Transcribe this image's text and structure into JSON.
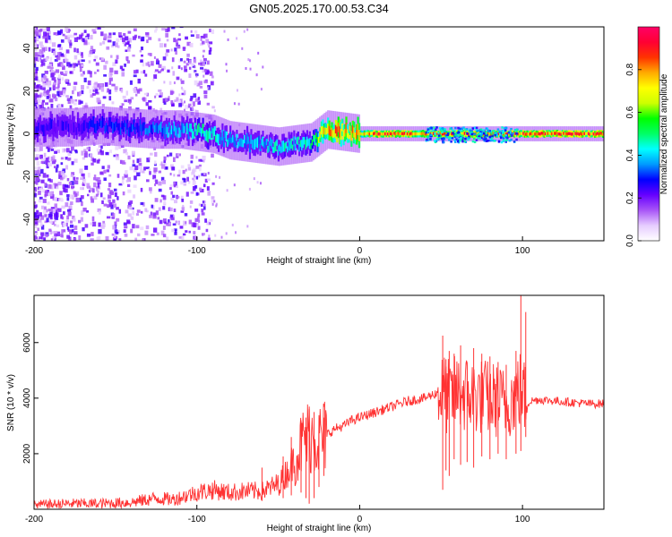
{
  "title": "GN05.2025.170.00.53.C34",
  "chart_data": [
    {
      "type": "heatmap",
      "title": "GN05.2025.170.00.53.C34",
      "xlabel": "Height of straight line (km)",
      "ylabel": "Frequency (Hz)",
      "xlim": [
        -200,
        150
      ],
      "ylim": [
        -50,
        50
      ],
      "x_ticks": [
        -200,
        -100,
        0,
        100
      ],
      "y_ticks": [
        -40,
        -20,
        0,
        20,
        40
      ],
      "x_tick_labels": [
        "-200",
        "-100",
        "0",
        "100"
      ],
      "y_tick_labels": [
        "-40",
        "-20",
        "0",
        "20",
        "40"
      ],
      "ridge": {
        "description_points_x": [
          -175,
          -160,
          -145,
          -125,
          -110,
          -100,
          -90,
          -80,
          -70,
          -60,
          -50,
          -40,
          -30,
          -20,
          -10,
          0,
          10,
          40,
          60,
          80,
          100,
          150
        ],
        "frequency_y": [
          3,
          4,
          3,
          2,
          2,
          1,
          0,
          -3,
          -4,
          -5,
          -6,
          -5,
          -4,
          2,
          1,
          0,
          0,
          0,
          0,
          0,
          0,
          0
        ],
        "peak_amplitude": [
          0.25,
          0.3,
          0.3,
          0.35,
          0.4,
          0.45,
          0.45,
          0.4,
          0.4,
          0.4,
          0.45,
          0.45,
          0.5,
          0.85,
          0.8,
          0.75,
          0.9,
          0.85,
          0.85,
          0.85,
          0.9,
          0.9
        ]
      },
      "colorbar": {
        "label": "Normalized spectral amplitude",
        "range": [
          0,
          1
        ],
        "ticks": [
          0.0,
          0.2,
          0.4,
          0.6,
          0.8
        ],
        "tick_labels": [
          "0.0",
          "0.2",
          "0.4",
          "0.6",
          "0.8"
        ],
        "colors": [
          "#ffffff",
          "#e6ccff",
          "#a855f7",
          "#6600ff",
          "#0000ff",
          "#0099ff",
          "#00ffff",
          "#00ff66",
          "#00ff00",
          "#ccff00",
          "#ffff00",
          "#ffaa00",
          "#ff3300",
          "#ff0033",
          "#ff0066"
        ]
      }
    },
    {
      "type": "line",
      "xlabel": "Height of straight line (km)",
      "ylabel": "SNR (10 * v/v)",
      "xlim": [
        -200,
        150
      ],
      "ylim": [
        0,
        7700
      ],
      "x_ticks": [
        -200,
        -100,
        0,
        100
      ],
      "y_ticks": [
        2000,
        4000,
        6000
      ],
      "x_tick_labels": [
        "-200",
        "-100",
        "0",
        "100"
      ],
      "y_tick_labels": [
        "2000",
        "4000",
        "6000"
      ],
      "series": [
        {
          "color": "#ff3333",
          "x": [
            -200,
            -180,
            -160,
            -140,
            -125,
            -115,
            -100,
            -90,
            -80,
            -70,
            -60,
            -50,
            -45,
            -40,
            -35,
            -30,
            -25,
            -20,
            -15,
            -10,
            -5,
            0,
            5,
            10,
            20,
            30,
            40,
            48,
            52,
            55,
            60,
            70,
            80,
            90,
            95,
            98,
            100,
            103,
            105,
            110,
            120,
            130,
            140,
            150
          ],
          "y": [
            150,
            200,
            200,
            250,
            400,
            350,
            600,
            700,
            600,
            650,
            650,
            900,
            1300,
            1800,
            2400,
            2700,
            2500,
            2700,
            2900,
            3000,
            3200,
            3300,
            3400,
            3500,
            3700,
            3900,
            4000,
            4200,
            4150,
            4000,
            4200,
            4100,
            4000,
            3800,
            4100,
            4300,
            4200,
            3800,
            3900,
            3950,
            3900,
            3850,
            3800,
            3800
          ]
        }
      ],
      "spikes": {
        "x": [
          -60,
          -47,
          -42,
          -36,
          -33,
          -31,
          -28,
          -25,
          -22,
          51,
          53,
          55,
          58,
          62,
          66,
          70,
          75,
          80,
          85,
          90,
          96,
          99,
          102
        ],
        "top": [
          1500,
          1900,
          2600,
          3200,
          3300,
          3600,
          3500,
          3300,
          3300,
          6250,
          5400,
          5700,
          5600,
          5900,
          5300,
          5800,
          5600,
          5500,
          5300,
          5200,
          5700,
          7700,
          7100
        ],
        "bottom": [
          300,
          400,
          500,
          600,
          400,
          200,
          400,
          800,
          1200,
          700,
          1400,
          1200,
          1800,
          1600,
          1700,
          1500,
          1900,
          1800,
          2000,
          1800,
          2000,
          2100,
          2600
        ]
      }
    }
  ]
}
